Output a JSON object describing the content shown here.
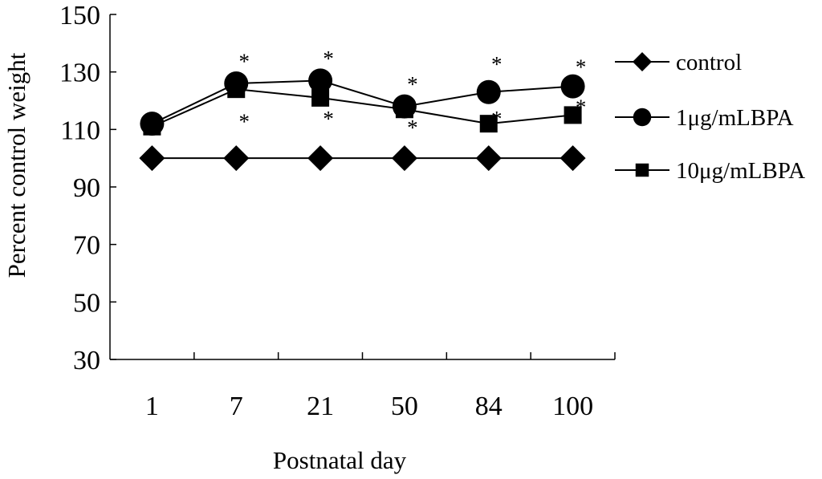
{
  "chart_data": {
    "type": "line",
    "title": "",
    "xlabel": "Postnatal day",
    "ylabel": "Percent control weight",
    "categories": [
      "1",
      "7",
      "21",
      "50",
      "84",
      "100"
    ],
    "ylim": [
      30,
      150
    ],
    "yticks": [
      30,
      50,
      70,
      90,
      110,
      130,
      150
    ],
    "grid": false,
    "legend_position": "right",
    "series": [
      {
        "name": "control",
        "marker": "diamond",
        "values": [
          100,
          100,
          100,
          100,
          100,
          100
        ]
      },
      {
        "name": "1μg/mLBPA",
        "marker": "circle",
        "values": [
          112,
          126,
          127,
          118,
          123,
          125
        ]
      },
      {
        "name": "10μg/mLBPA",
        "marker": "square",
        "values": [
          111,
          124,
          121,
          117,
          112,
          115
        ]
      }
    ],
    "annotations": [
      {
        "text": "*",
        "category": "7",
        "value": 134
      },
      {
        "text": "*",
        "category": "7",
        "value": 113
      },
      {
        "text": "*",
        "category": "21",
        "value": 135
      },
      {
        "text": "*",
        "category": "21",
        "value": 114
      },
      {
        "text": "*",
        "category": "50",
        "value": 126
      },
      {
        "text": "*",
        "category": "50",
        "value": 111
      },
      {
        "text": "*",
        "category": "84",
        "value": 133
      },
      {
        "text": "*",
        "category": "84",
        "value": 114
      },
      {
        "text": "*",
        "category": "100",
        "value": 132
      },
      {
        "text": "*",
        "category": "100",
        "value": 118
      }
    ]
  },
  "colors": {
    "line": "#000000",
    "background": "#ffffff"
  }
}
